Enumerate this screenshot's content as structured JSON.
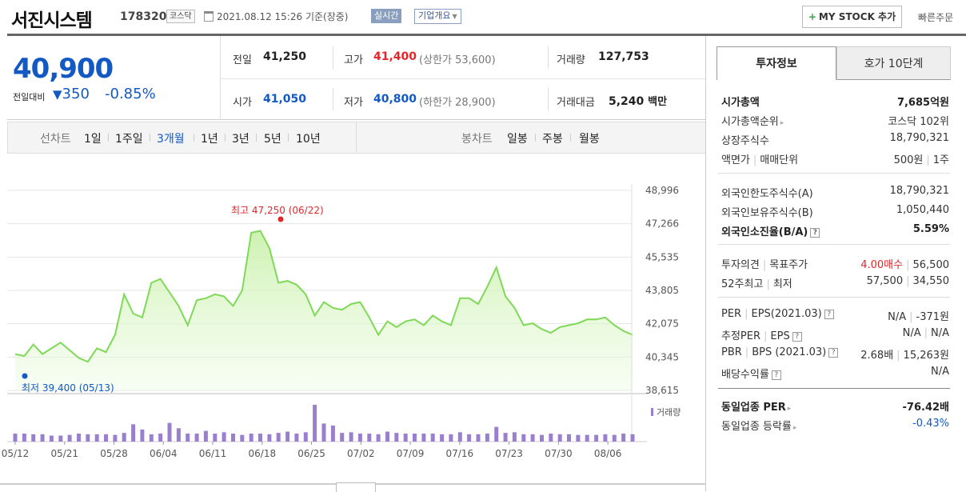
{
  "header": {
    "company": "서진시스템",
    "code": "178320",
    "market": "코스닥",
    "datetime": "2021.08.12 15:26",
    "basis": "기준(장중)",
    "realtime": "실시간",
    "corp_info": "기업개요",
    "mystock_label": "MY STOCK 추가",
    "quick_order": "빠른주문"
  },
  "price": {
    "current": "40,900",
    "change_label": "전일대비",
    "change_symbol": "▼",
    "change": "350",
    "change_pct": "-0.85%"
  },
  "summary": {
    "prev_label": "전일",
    "prev": "41,250",
    "open_label": "시가",
    "open": "41,050",
    "high_label": "고가",
    "high": "41,400",
    "upper_limit": "(상한가 53,600)",
    "low_label": "저가",
    "low": "40,800",
    "lower_limit": "(하한가 28,900)",
    "volume_label": "거래량",
    "volume": "127,753",
    "amount_label": "거래대금",
    "amount": "5,240",
    "amount_unit": "백만"
  },
  "chart_nav": {
    "line_label": "선차트",
    "periods": [
      "1일",
      "1주일",
      "3개월",
      "1년",
      "3년",
      "5년",
      "10년"
    ],
    "active_period": "3개월",
    "candle_label": "봉차트",
    "candles": [
      "일봉",
      "주봉",
      "월봉"
    ]
  },
  "chart_data": {
    "type": "line",
    "y_ticks": [
      "48,996",
      "47,266",
      "45,535",
      "43,805",
      "42,075",
      "40,345",
      "38,615"
    ],
    "ylim": [
      38615,
      48996
    ],
    "x_ticks": [
      "05/12",
      "05/21",
      "05/28",
      "06/04",
      "06/11",
      "06/18",
      "06/25",
      "07/02",
      "07/09",
      "07/16",
      "07/23",
      "07/30",
      "08/06"
    ],
    "high_label": "최고 47,250 (06/22)",
    "low_label": "최저 39,400 (05/13)",
    "volume_label": "거래량",
    "series": [
      {
        "values": [
          40500,
          40400,
          41000,
          40500,
          40800,
          41100,
          40700,
          40300,
          40100,
          40800,
          40600,
          41500,
          43600,
          42600,
          42400,
          44200,
          44400,
          43700,
          43000,
          42000,
          43300,
          43400,
          43600,
          43500,
          43000,
          43800,
          46800,
          46900,
          46000,
          44200,
          44300,
          44100,
          43600,
          42500,
          43200,
          42900,
          42800,
          43100,
          43200,
          42400,
          41500,
          42200,
          41900,
          42200,
          42300,
          42000,
          42500,
          42200,
          42000,
          43400,
          43400,
          43100,
          44000,
          45000,
          43500,
          42900,
          42000,
          42100,
          41800,
          41600,
          41900,
          42000,
          42100,
          42300,
          42300,
          42400,
          42000,
          41700,
          41500
        ]
      }
    ],
    "volumes": [
      12,
      12,
      11,
      11,
      9,
      9,
      10,
      12,
      11,
      11,
      11,
      10,
      13,
      26,
      18,
      11,
      12,
      28,
      20,
      12,
      12,
      16,
      12,
      14,
      12,
      10,
      12,
      12,
      11,
      13,
      15,
      12,
      14,
      55,
      27,
      24,
      13,
      14,
      12,
      12,
      11,
      15,
      13,
      12,
      12,
      12,
      12,
      11,
      11,
      14,
      11,
      11,
      12,
      22,
      13,
      14,
      11,
      11,
      10,
      12,
      11,
      11,
      10,
      10,
      10,
      11,
      10,
      12,
      11
    ]
  },
  "right_panel": {
    "tabs": [
      "투자정보",
      "호가 10단계"
    ],
    "rows": {
      "market_cap_label": "시가총액",
      "market_cap": "7,685억원",
      "rank_label": "시가총액순위",
      "rank": "코스닥 102위",
      "shares_label": "상장주식수",
      "shares": "18,790,321",
      "face_label": "액면가",
      "unit_label": "매매단위",
      "face": "500원",
      "unit": "1주",
      "foreign_limit_label": "외국인한도주식수(A)",
      "foreign_limit": "18,790,321",
      "foreign_hold_label": "외국인보유주식수(B)",
      "foreign_hold": "1,050,440",
      "foreign_ratio_label": "외국인소진율(B/A)",
      "foreign_ratio": "5.59%",
      "opinion_label": "투자의견",
      "target_label": "목표주가",
      "opinion": "4.00매수",
      "target": "56,500",
      "w52_label": "52주최고",
      "w52low_label": "최저",
      "w52_high": "57,500",
      "w52_low": "34,550",
      "per_label": "PER",
      "eps_label": "EPS(2021.03)",
      "per": "N/A",
      "eps": "-371원",
      "est_per_label": "추정PER",
      "est_eps_label": "EPS",
      "est_per": "N/A",
      "est_eps": "N/A",
      "pbr_label": "PBR",
      "bps_label": "BPS (2021.03)",
      "pbr": "2.68배",
      "bps": "15,263원",
      "div_label": "배당수익률",
      "div": "N/A",
      "ind_per_label": "동일업종 PER",
      "ind_per": "-76.42배",
      "ind_chg_label": "동일업종 등락률",
      "ind_chg": "-0.43%"
    }
  },
  "colors": {
    "up": "#e0282b",
    "down": "#1259c3",
    "line": "#7ed957",
    "volume": "#9b7fcf"
  }
}
